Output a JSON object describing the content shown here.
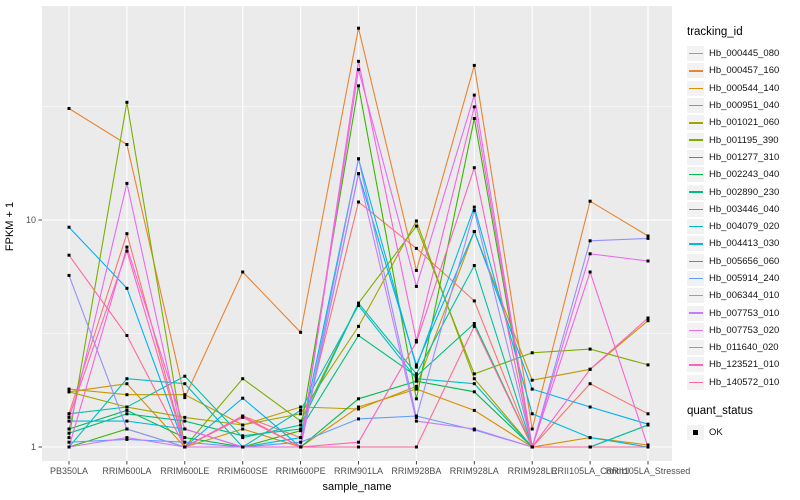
{
  "chart_data": {
    "type": "line",
    "xlabel": "sample_name",
    "ylabel": "FPKM + 1",
    "y_scale": "log10",
    "y_ticks": [
      {
        "label": "1",
        "value": 1
      },
      {
        "label": "10",
        "value": 10
      }
    ],
    "y_minor": [
      3.162,
      31.62
    ],
    "ylim_log": [
      0.94,
      87
    ],
    "grid": "on",
    "legend_position": "right",
    "legend_title": "tracking_id",
    "categories": [
      "PB350LA",
      "RRIM600LA",
      "RRIM600LE",
      "RRIM600SE",
      "RRIM600PE",
      "RRIM901LA",
      "RRIM928BA",
      "RRIM928LA",
      "RRIM928LE",
      "RRII105LA_Control",
      "RRII105LA_Stressed"
    ],
    "series": [
      {
        "name": "Hb_000445_080",
        "color": "#F8766D",
        "values": [
          1.4,
          8.7,
          1.0,
          1.37,
          1.1,
          12,
          7.5,
          4.4,
          1.0,
          1.9,
          1.4
        ]
      },
      {
        "name": "Hb_000457_160",
        "color": "#EA8331",
        "values": [
          31,
          21.5,
          1.65,
          5.9,
          3.2,
          70,
          6.0,
          48,
          1.2,
          12.1,
          8.5
        ]
      },
      {
        "name": "Hb_000544_140",
        "color": "#D89000",
        "values": [
          1.75,
          1.9,
          1.0,
          1.2,
          1.0,
          1.5,
          1.8,
          1.45,
          1.0,
          1.1,
          1.02
        ]
      },
      {
        "name": "Hb_000951_040",
        "color": "#C09B00",
        "values": [
          1.8,
          1.7,
          1.7,
          1.25,
          1.5,
          1.47,
          1.85,
          8.9,
          1.97,
          2.2,
          3.6
        ]
      },
      {
        "name": "Hb_001021_060",
        "color": "#A3A500",
        "values": [
          1.75,
          1.5,
          1.35,
          1.25,
          1.4,
          3.4,
          9.9,
          2.0,
          1.0,
          1.0,
          1.0
        ]
      },
      {
        "name": "Hb_001195_390",
        "color": "#7CAE00",
        "values": [
          1.1,
          33,
          1.0,
          2.0,
          1.3,
          4.3,
          9.4,
          2.1,
          2.6,
          2.7,
          2.3
        ]
      },
      {
        "name": "Hb_001277_310",
        "color": "#39B600",
        "values": [
          1.0,
          1.2,
          1.0,
          1.0,
          1.18,
          39,
          1.63,
          28,
          1.0,
          1.0,
          1.0
        ]
      },
      {
        "name": "Hb_002243_040",
        "color": "#00BB4E",
        "values": [
          1.2,
          1.45,
          1.1,
          1.0,
          1.0,
          1.63,
          1.95,
          1.75,
          1.0,
          1.0,
          1.25
        ]
      },
      {
        "name": "Hb_002890_230",
        "color": "#00BF7D",
        "values": [
          1.15,
          1.4,
          1.3,
          1.12,
          1.2,
          3.1,
          2.05,
          3.5,
          1.0,
          1.0,
          1.0
        ]
      },
      {
        "name": "Hb_003446_040",
        "color": "#00C1A3",
        "values": [
          1.4,
          1.5,
          2.05,
          1.1,
          1.25,
          4.3,
          2.1,
          6.3,
          1.0,
          1.0,
          1.25
        ]
      },
      {
        "name": "Hb_004079_020",
        "color": "#00BFC4",
        "values": [
          1.0,
          2.0,
          1.9,
          1.0,
          1.45,
          4.2,
          2.0,
          1.9,
          1.0,
          1.0,
          1.0
        ]
      },
      {
        "name": "Hb_004413_030",
        "color": "#00BAE0",
        "values": [
          1.3,
          1.3,
          1.2,
          1.0,
          1.1,
          18.6,
          2.25,
          11.4,
          1.4,
          1.1,
          1.0
        ]
      },
      {
        "name": "Hb_005656_060",
        "color": "#00B0F6",
        "values": [
          9.3,
          5.0,
          1.0,
          1.64,
          1.0,
          16,
          2.3,
          8.9,
          1.8,
          1.5,
          1.26
        ]
      },
      {
        "name": "Hb_005914_240",
        "color": "#619CFF",
        "values": [
          1.05,
          1.08,
          1.05,
          1.0,
          1.05,
          1.33,
          1.37,
          1.19,
          1.0,
          1.0,
          1.0
        ]
      },
      {
        "name": "Hb_006344_010",
        "color": "#9590FF",
        "values": [
          5.7,
          1.2,
          1.0,
          1.0,
          1.0,
          18.6,
          1.35,
          11.0,
          1.0,
          8.1,
          8.3
        ]
      },
      {
        "name": "Hb_007753_010",
        "color": "#C77CFF",
        "values": [
          1.0,
          1.1,
          1.0,
          1.0,
          1.0,
          16,
          1.3,
          1.2,
          1.0,
          1.0,
          1.0
        ]
      },
      {
        "name": "Hb_007753_020",
        "color": "#E76BF3",
        "values": [
          1.2,
          14.5,
          1.0,
          1.0,
          1.0,
          46,
          5.1,
          35.5,
          1.0,
          7.1,
          6.6
        ]
      },
      {
        "name": "Hb_011640_020",
        "color": "#FA62DB",
        "values": [
          1.0,
          7.6,
          1.2,
          1.0,
          1.0,
          50,
          2.95,
          31.5,
          1.0,
          5.9,
          1.0
        ]
      },
      {
        "name": "Hb_123521_010",
        "color": "#FF62BC",
        "values": [
          1.35,
          7.3,
          1.0,
          1.37,
          1.0,
          1.05,
          2.9,
          17,
          1.0,
          2.2,
          3.7
        ]
      },
      {
        "name": "Hb_140572_010",
        "color": "#FF6A98",
        "values": [
          7.0,
          3.1,
          1.0,
          1.35,
          1.0,
          1.0,
          1.0,
          3.4,
          1.0,
          1.0,
          1.0
        ]
      }
    ],
    "shape_legend": {
      "title": "quant_status",
      "entries": [
        {
          "label": "OK",
          "shape": "filled-square",
          "color": "#000000"
        }
      ]
    },
    "point_shape": "filled-square",
    "point_color": "#000000"
  },
  "style": {
    "panel_bg": "#EBEBEB",
    "grid_color": "#FFFFFF",
    "tick_text_color": "#4D4D4D",
    "legend_key_bg": "#F2F2F2"
  }
}
